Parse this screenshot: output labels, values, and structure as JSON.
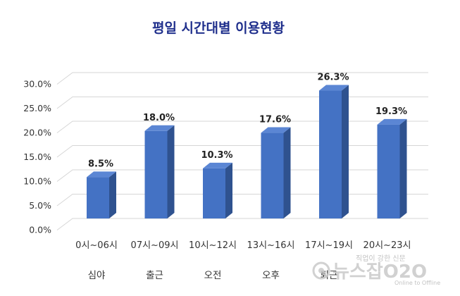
{
  "chart_data": {
    "type": "bar",
    "title": "평일 시간대별 이용현황",
    "categories": [
      "0시~06시",
      "07시~09시",
      "10시~12시",
      "13시~16시",
      "17시~19시",
      "20시~23시"
    ],
    "subcategories": [
      "심야",
      "출근",
      "오전",
      "오후",
      "퇴근",
      ""
    ],
    "values": [
      8.5,
      18.0,
      10.3,
      17.6,
      26.3,
      19.3
    ],
    "value_labels": [
      "8.5%",
      "18.0%",
      "10.3%",
      "17.6%",
      "26.3%",
      "19.3%"
    ],
    "y_ticks": [
      "0.0%",
      "5.0%",
      "10.0%",
      "15.0%",
      "20.0%",
      "25.0%",
      "30.0%"
    ],
    "ylim": [
      0,
      30
    ],
    "grid": true,
    "style": "3d-column",
    "colors": {
      "bar_front": "#4472c4",
      "bar_side": "#2f528f",
      "bar_top": "#5b86d4",
      "title": "#1f2f8c"
    }
  },
  "watermark": {
    "tagline": "직업이 강한 신문",
    "brand": "뉴스잡O2O",
    "sub": "Online to Offline"
  }
}
